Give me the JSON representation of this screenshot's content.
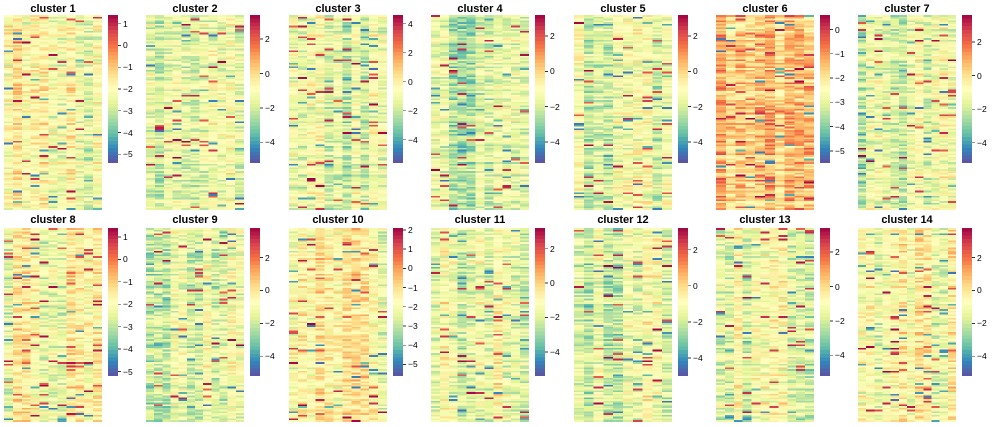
{
  "chart_data": [
    {
      "type": "heatmap",
      "title": "cluster 1",
      "colorbar": {
        "ticks": [
          1,
          0,
          -1,
          -2,
          -3,
          -4,
          -5
        ],
        "range": [
          -5.4,
          1.4
        ]
      }
    },
    {
      "type": "heatmap",
      "title": "cluster 2",
      "colorbar": {
        "ticks": [
          2,
          0,
          -2,
          -4
        ],
        "range": [
          -5.2,
          3.4
        ]
      }
    },
    {
      "type": "heatmap",
      "title": "cluster 3",
      "colorbar": {
        "ticks": [
          4,
          2,
          0,
          -2,
          -4
        ],
        "range": [
          -5.6,
          4.6
        ]
      }
    },
    {
      "type": "heatmap",
      "title": "cluster 4",
      "colorbar": {
        "ticks": [
          2,
          0,
          -2,
          -4
        ],
        "range": [
          -5.2,
          3.2
        ]
      }
    },
    {
      "type": "heatmap",
      "title": "cluster 5",
      "colorbar": {
        "ticks": [
          2,
          0,
          -2,
          -4
        ],
        "range": [
          -5.2,
          3.2
        ]
      }
    },
    {
      "type": "heatmap",
      "title": "cluster 6",
      "colorbar": {
        "ticks": [
          0,
          -1,
          -2,
          -3,
          -4,
          -5
        ],
        "range": [
          -5.5,
          0.6
        ]
      }
    },
    {
      "type": "heatmap",
      "title": "cluster 7",
      "colorbar": {
        "ticks": [
          2,
          0,
          -2,
          -4
        ],
        "range": [
          -5.2,
          3.6
        ]
      }
    },
    {
      "type": "heatmap",
      "title": "cluster 8",
      "colorbar": {
        "ticks": [
          1,
          0,
          -1,
          -2,
          -3,
          -4,
          -5
        ],
        "range": [
          -5.2,
          1.4
        ]
      }
    },
    {
      "type": "heatmap",
      "title": "cluster 9",
      "colorbar": {
        "ticks": [
          2,
          0,
          -2,
          -4
        ],
        "range": [
          -5.2,
          3.8
        ]
      }
    },
    {
      "type": "heatmap",
      "title": "cluster 10",
      "colorbar": {
        "ticks": [
          2,
          1,
          0,
          -1,
          -2,
          -3,
          -4,
          -5
        ],
        "range": [
          -5.6,
          2.1
        ]
      }
    },
    {
      "type": "heatmap",
      "title": "cluster 11",
      "colorbar": {
        "ticks": [
          2,
          0,
          -2,
          -4
        ],
        "range": [
          -5.4,
          3.2
        ]
      }
    },
    {
      "type": "heatmap",
      "title": "cluster 12",
      "colorbar": {
        "ticks": [
          2,
          0,
          -2,
          -4
        ],
        "range": [
          -5.0,
          3.2
        ]
      }
    },
    {
      "type": "heatmap",
      "title": "cluster 13",
      "colorbar": {
        "ticks": [
          2,
          0,
          -2,
          -4
        ],
        "range": [
          -5.2,
          3.4
        ]
      }
    },
    {
      "type": "heatmap",
      "title": "cluster 14",
      "colorbar": {
        "ticks": [
          2,
          0,
          -2,
          -4
        ],
        "range": [
          -5.2,
          3.8
        ]
      }
    }
  ],
  "palette": [
    "#5e4fa2",
    "#3288bd",
    "#66c2a5",
    "#abdda4",
    "#e6f598",
    "#ffffbf",
    "#fee08b",
    "#fdae61",
    "#f46d43",
    "#d53e4f",
    "#9e0142"
  ]
}
